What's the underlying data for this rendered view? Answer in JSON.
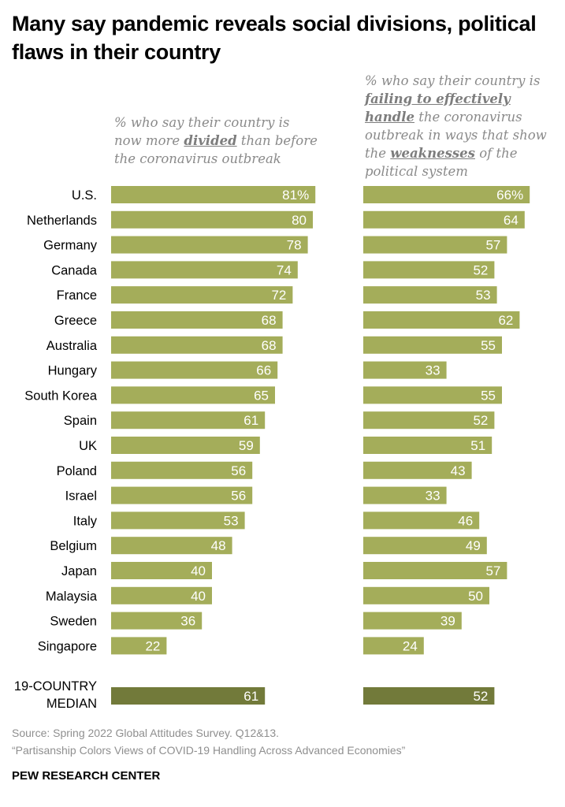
{
  "title": "Many say pandemic reveals social divisions, political flaws in their country",
  "chart_data": {
    "type": "bar",
    "orientation": "horizontal",
    "categories": [
      "U.S.",
      "Netherlands",
      "Germany",
      "Canada",
      "France",
      "Greece",
      "Australia",
      "Hungary",
      "South Korea",
      "Spain",
      "UK",
      "Poland",
      "Israel",
      "Italy",
      "Belgium",
      "Japan",
      "Malaysia",
      "Sweden",
      "Singapore"
    ],
    "series": [
      {
        "name": "Divided",
        "header": {
          "pre": "% who say their country is now more ",
          "em": "divided",
          "post": " than before the coronavirus outbreak"
        },
        "values": [
          81,
          80,
          78,
          74,
          72,
          68,
          68,
          66,
          65,
          61,
          59,
          56,
          56,
          53,
          48,
          40,
          40,
          36,
          22
        ],
        "median": 61,
        "labels": [
          "81%",
          "80",
          "78",
          "74",
          "72",
          "68",
          "68",
          "66",
          "65",
          "61",
          "59",
          "56",
          "56",
          "53",
          "48",
          "40",
          "40",
          "36",
          "22"
        ],
        "median_label": "61"
      },
      {
        "name": "Weaknesses",
        "header": {
          "pre": "% who say their country is ",
          "em": "failing to effectively handle",
          "mid": " the coronavirus outbreak in ways that show the ",
          "em2": "weaknesses",
          "post": " of the political system"
        },
        "values": [
          66,
          64,
          57,
          52,
          53,
          62,
          55,
          33,
          55,
          52,
          51,
          43,
          33,
          46,
          49,
          57,
          50,
          39,
          24
        ],
        "median": 52,
        "labels": [
          "66%",
          "64",
          "57",
          "52",
          "53",
          "62",
          "55",
          "33",
          "55",
          "52",
          "51",
          "43",
          "33",
          "46",
          "49",
          "57",
          "50",
          "39",
          "24"
        ],
        "median_label": "52"
      }
    ],
    "median_category": [
      "19-COUNTRY",
      "MEDIAN"
    ],
    "xlim": [
      0,
      100
    ],
    "bar_color": "#a4ad5a",
    "median_bar_color": "#727a3a",
    "label_color": "#ffffff"
  },
  "source": {
    "line1": "Source: Spring 2022 Global Attitudes Survey. Q12&13.",
    "line2": "“Partisanship Colors Views of COVID-19 Handling Across Advanced Economies”"
  },
  "brand": "PEW RESEARCH CENTER"
}
